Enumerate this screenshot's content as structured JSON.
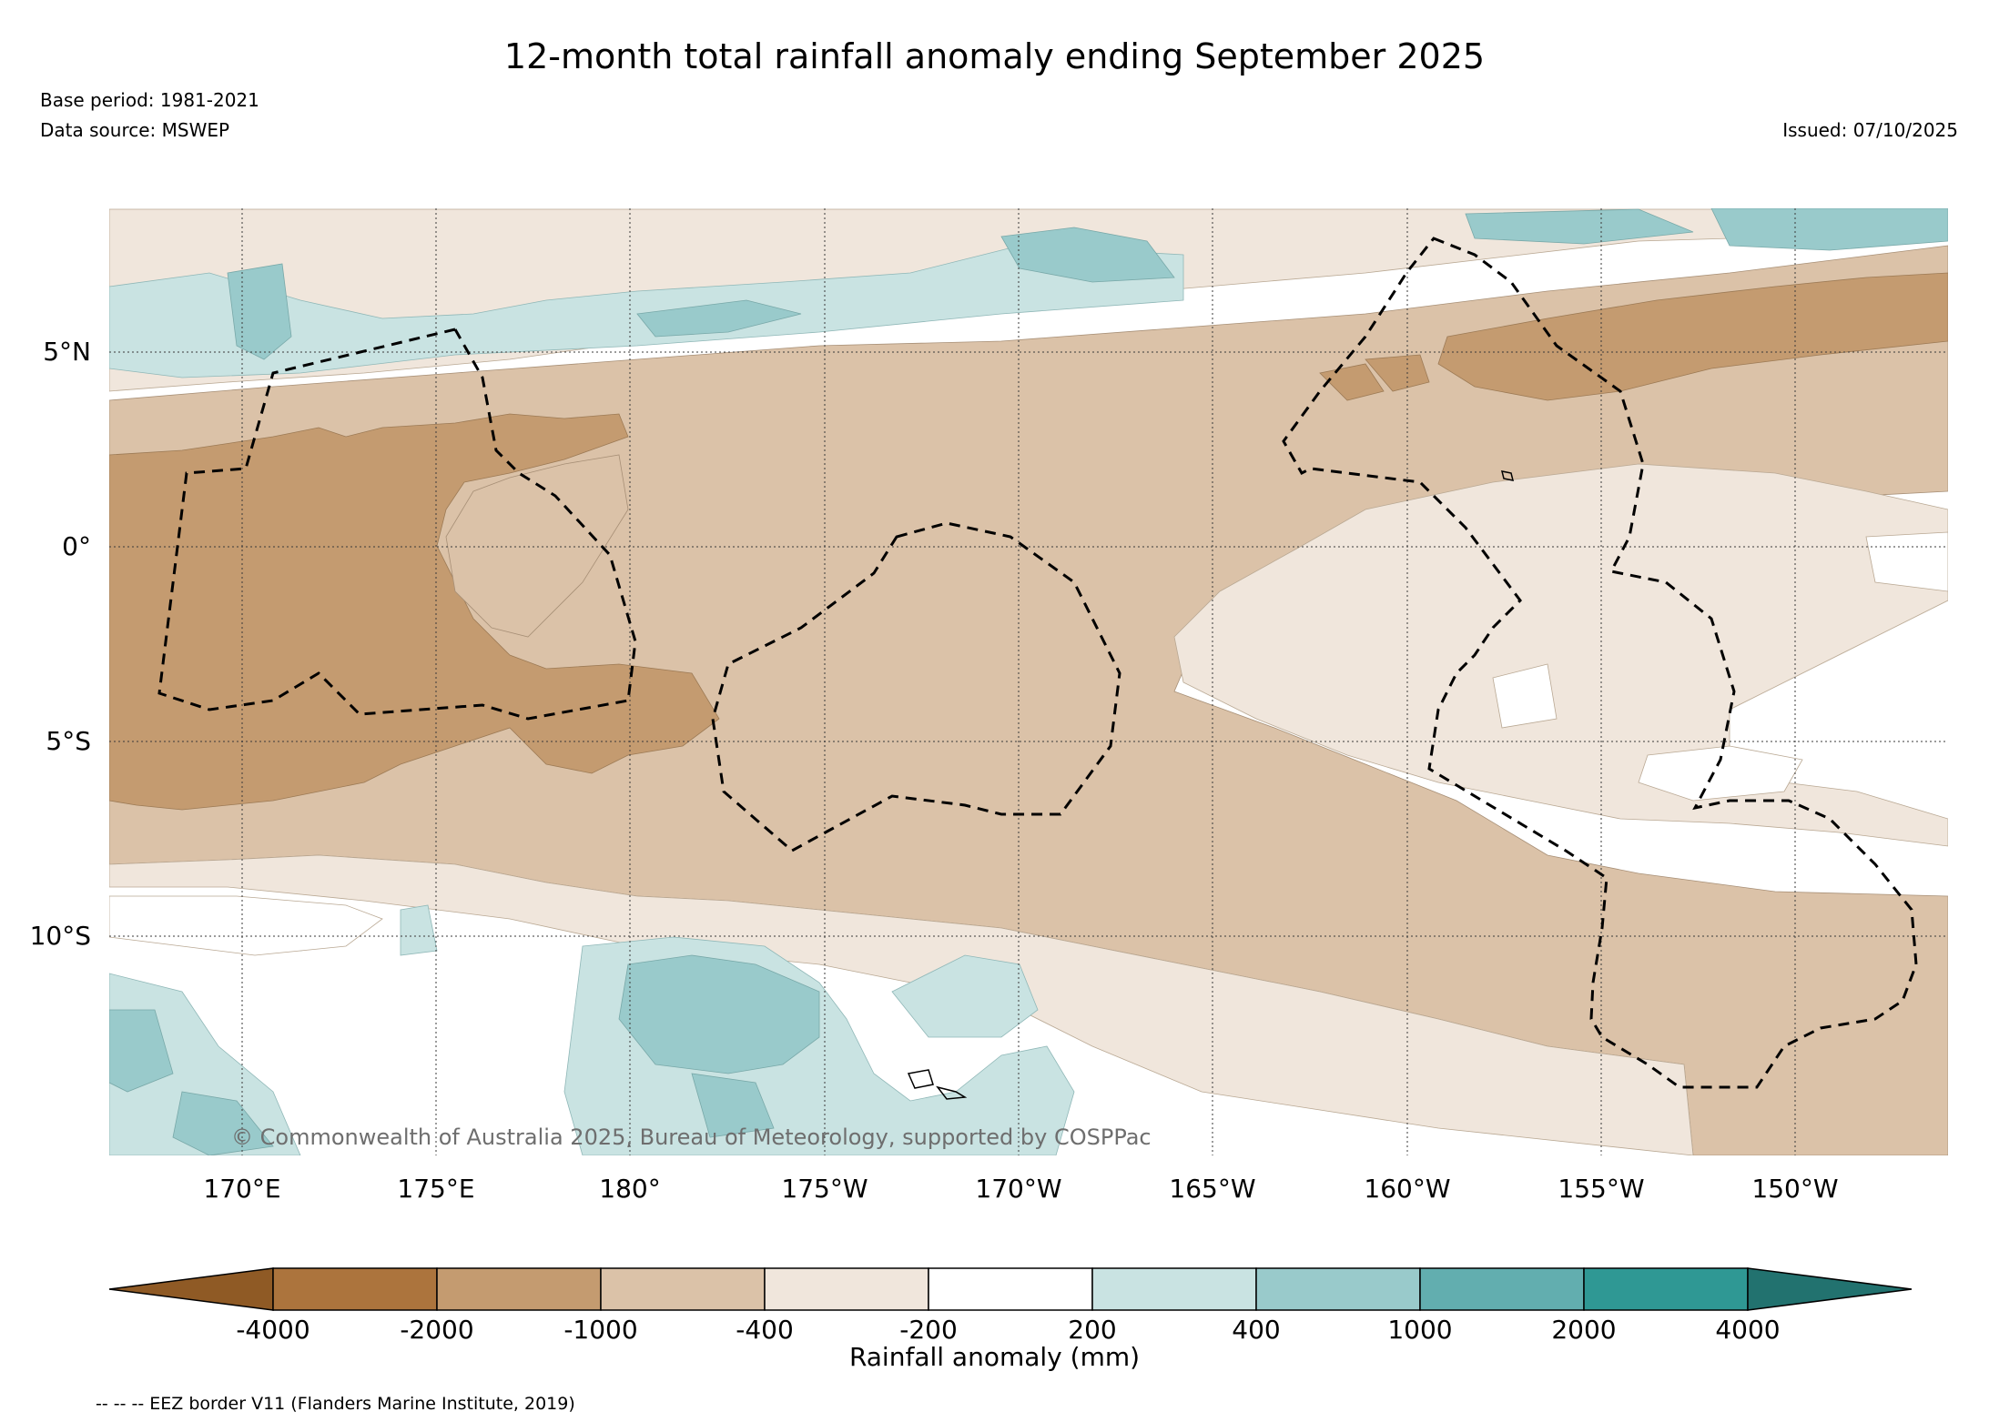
{
  "title": "12-month total rainfall anomaly ending September 2025",
  "base_period": "Base period: 1981-2021",
  "data_source": "Data source: MSWEP",
  "issued": "Issued: 07/10/2025",
  "copyright": "© Commonwealth of Australia 2025, Bureau of Meteorology, supported by COSPPac",
  "latitude_labels": [
    "5°N",
    "0°",
    "5°S",
    "10°S"
  ],
  "longitude_labels": [
    "170°E",
    "175°E",
    "180°",
    "175°W",
    "170°W",
    "165°W",
    "160°W",
    "155°W",
    "150°W"
  ],
  "colorbar": {
    "title": "Rainfall anomaly (mm)",
    "tick_labels": [
      "-4000",
      "-2000",
      "-1000",
      "-400",
      "-200",
      "200",
      "400",
      "1000",
      "2000",
      "4000"
    ],
    "colors": [
      "#8f5a25",
      "#ac743d",
      "#c49b70",
      "#dbc2a8",
      "#f0e6dc",
      "#ffffff",
      "#c9e3e2",
      "#99cacb",
      "#62aeaf",
      "#2f9894",
      "#22726f"
    ]
  },
  "legend_note": "-- -- -- EEZ border V11 (Flanders Marine Institute, 2019)",
  "map_colors": {
    "deficit_strong": "#c49b70",
    "deficit_moderate": "#dbc2a8",
    "deficit_weak": "#f0e6dc",
    "surplus_weak": "#c9e3e2",
    "surplus_moderate": "#99cacb"
  }
}
